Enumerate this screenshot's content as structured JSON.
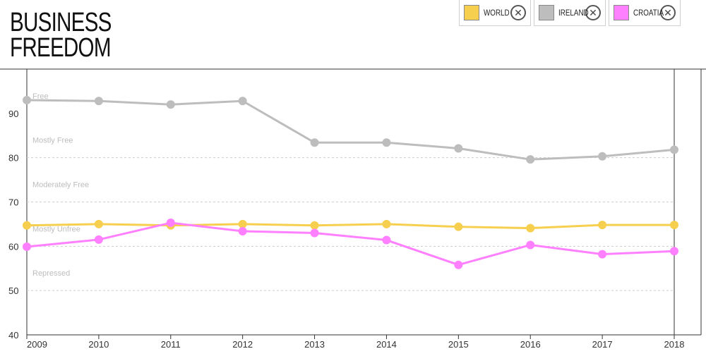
{
  "page": {
    "title_line1": "BUSINESS",
    "title_line2": "FREEDOM"
  },
  "legend": {
    "items": [
      {
        "label": "WORLD",
        "color": "#f7cf4f",
        "remove_icon": "close-icon"
      },
      {
        "label": "IRELAND",
        "color": "#bdbdbd",
        "remove_icon": "close-icon"
      },
      {
        "label": "CROATIA",
        "color": "#ff80ff",
        "remove_icon": "close-icon"
      }
    ]
  },
  "chart_data": {
    "type": "line",
    "x": [
      "2009",
      "2010",
      "2011",
      "2012",
      "2013",
      "2014",
      "2015",
      "2016",
      "2017",
      "2018"
    ],
    "ylim": [
      40,
      100
    ],
    "yticks": [
      "40",
      "50",
      "60",
      "70",
      "80",
      "90"
    ],
    "grid": "dashed at 50, 60, 70, 80",
    "bands": [
      {
        "label": "Free"
      },
      {
        "label": "Mostly Free"
      },
      {
        "label": "Moderately Free"
      },
      {
        "label": "Mostly Unfree"
      },
      {
        "label": "Repressed"
      }
    ],
    "series": [
      {
        "name": "IRELAND",
        "color": "#bdbdbd",
        "values": [
          93.0,
          92.8,
          92.0,
          92.8,
          83.4,
          83.4,
          82.1,
          79.6,
          80.3,
          81.8
        ]
      },
      {
        "name": "WORLD",
        "color": "#f7cf4f",
        "values": [
          64.7,
          65.0,
          64.7,
          65.0,
          64.7,
          65.0,
          64.4,
          64.1,
          64.8,
          64.8
        ]
      },
      {
        "name": "CROATIA",
        "color": "#ff80ff",
        "values": [
          59.9,
          61.5,
          65.3,
          63.4,
          63.0,
          61.4,
          55.8,
          60.3,
          58.2,
          58.9
        ]
      }
    ]
  }
}
